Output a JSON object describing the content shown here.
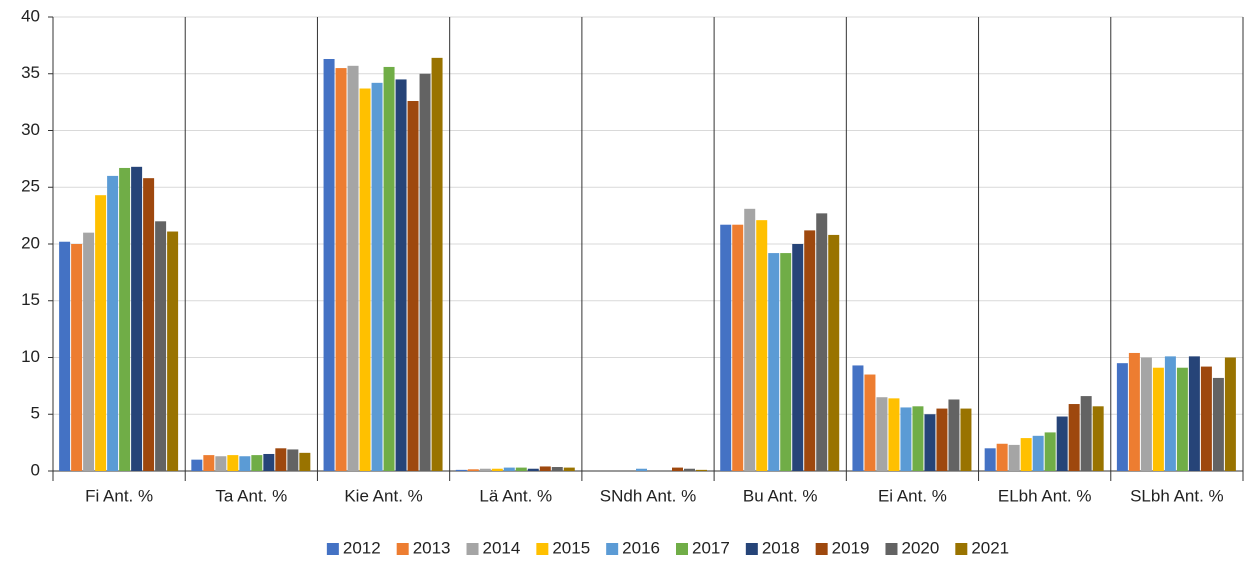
{
  "chart_data": {
    "type": "bar",
    "categories": [
      "Fi Ant. %",
      "Ta Ant. %",
      "Kie Ant. %",
      "Lä Ant. %",
      "SNdh Ant. %",
      "Bu Ant. %",
      "Ei Ant. %",
      "ELbh Ant. %",
      "SLbh Ant. %"
    ],
    "series": [
      {
        "name": "2012",
        "color": "#4472c4",
        "values": [
          20.2,
          1.0,
          36.3,
          0.1,
          0,
          21.7,
          9.3,
          2.0,
          9.5
        ]
      },
      {
        "name": "2013",
        "color": "#ed7d31",
        "values": [
          20.0,
          1.4,
          35.5,
          0.15,
          0,
          21.7,
          8.5,
          2.4,
          10.4
        ]
      },
      {
        "name": "2014",
        "color": "#a5a5a5",
        "values": [
          21.0,
          1.3,
          35.7,
          0.2,
          0,
          23.1,
          6.5,
          2.3,
          10.0
        ]
      },
      {
        "name": "2015",
        "color": "#ffc000",
        "values": [
          24.3,
          1.4,
          33.7,
          0.2,
          0,
          22.1,
          6.4,
          2.9,
          9.1
        ]
      },
      {
        "name": "2016",
        "color": "#5b9bd5",
        "values": [
          26.0,
          1.3,
          34.2,
          0.3,
          0.2,
          19.2,
          5.6,
          3.1,
          10.1
        ]
      },
      {
        "name": "2017",
        "color": "#70ad47",
        "values": [
          26.7,
          1.4,
          35.6,
          0.3,
          0,
          19.2,
          5.7,
          3.4,
          9.1
        ]
      },
      {
        "name": "2018",
        "color": "#264478",
        "values": [
          26.8,
          1.5,
          34.5,
          0.2,
          0,
          20.0,
          5.0,
          4.8,
          10.1
        ]
      },
      {
        "name": "2019",
        "color": "#9e480e",
        "values": [
          25.8,
          2.0,
          32.6,
          0.4,
          0.3,
          21.2,
          5.5,
          5.9,
          9.2
        ]
      },
      {
        "name": "2020",
        "color": "#636363",
        "values": [
          22.0,
          1.9,
          35.0,
          0.35,
          0.2,
          22.7,
          6.3,
          6.6,
          8.2
        ]
      },
      {
        "name": "2021",
        "color": "#997300",
        "values": [
          21.1,
          1.6,
          36.4,
          0.3,
          0.1,
          20.8,
          5.5,
          5.7,
          10.0
        ]
      }
    ],
    "ylim": [
      0,
      40
    ],
    "yticks": [
      0,
      5,
      10,
      15,
      20,
      25,
      30,
      35,
      40
    ],
    "grid": true,
    "legend": "bottom"
  }
}
